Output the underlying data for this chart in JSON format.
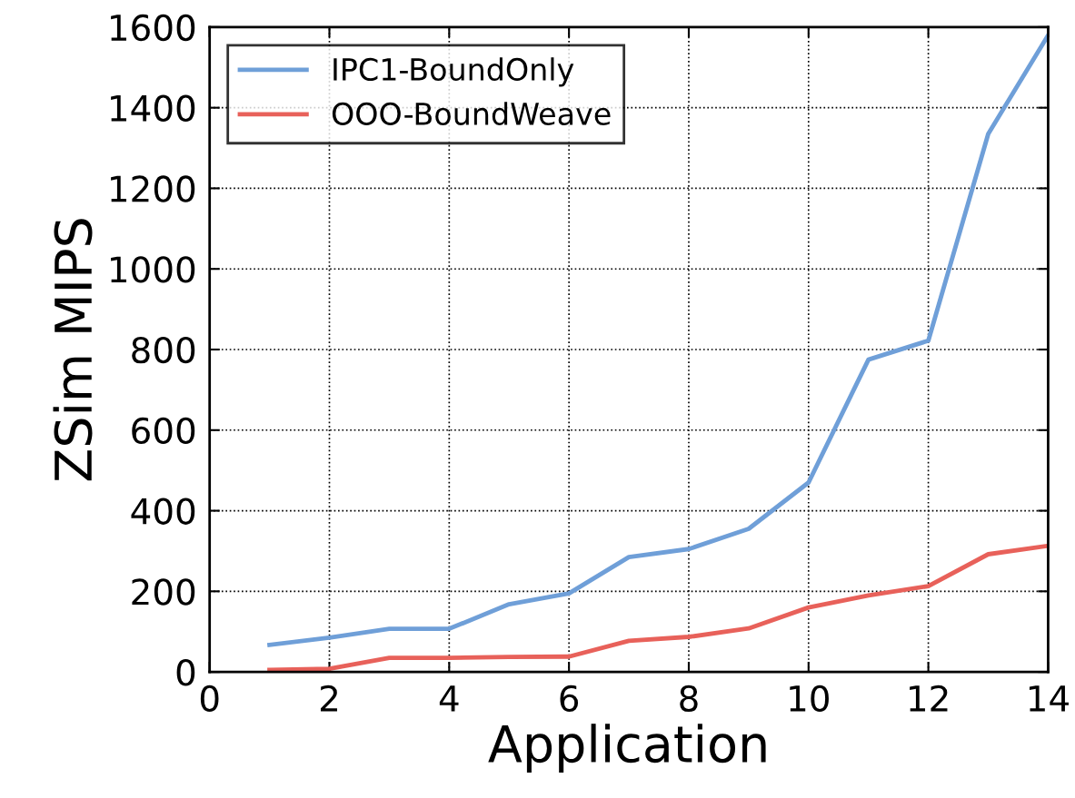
{
  "chart_data": {
    "type": "line",
    "xlabel": "Application",
    "ylabel": "ZSim MIPS",
    "x": [
      1,
      2,
      3,
      4,
      5,
      6,
      7,
      8,
      9,
      10,
      11,
      12,
      13,
      14
    ],
    "series": [
      {
        "name": "IPC1-BoundOnly",
        "color": "#6f9fd8",
        "values": [
          67,
          85,
          107,
          107,
          168,
          195,
          285,
          305,
          355,
          470,
          775,
          822,
          1335,
          1580
        ]
      },
      {
        "name": "OOO-BoundWeave",
        "color": "#e8615a",
        "values": [
          5,
          8,
          35,
          35,
          37,
          38,
          77,
          87,
          108,
          160,
          190,
          213,
          292,
          313
        ]
      }
    ],
    "xlim": [
      0,
      14
    ],
    "xticks": [
      0,
      2,
      4,
      6,
      8,
      10,
      12,
      14
    ],
    "ylim": [
      0,
      1600
    ],
    "yticks": [
      0,
      200,
      400,
      600,
      800,
      1000,
      1200,
      1400,
      1600
    ],
    "grid": true,
    "legend": "top left",
    "marker": "none",
    "line_style": "solid"
  }
}
